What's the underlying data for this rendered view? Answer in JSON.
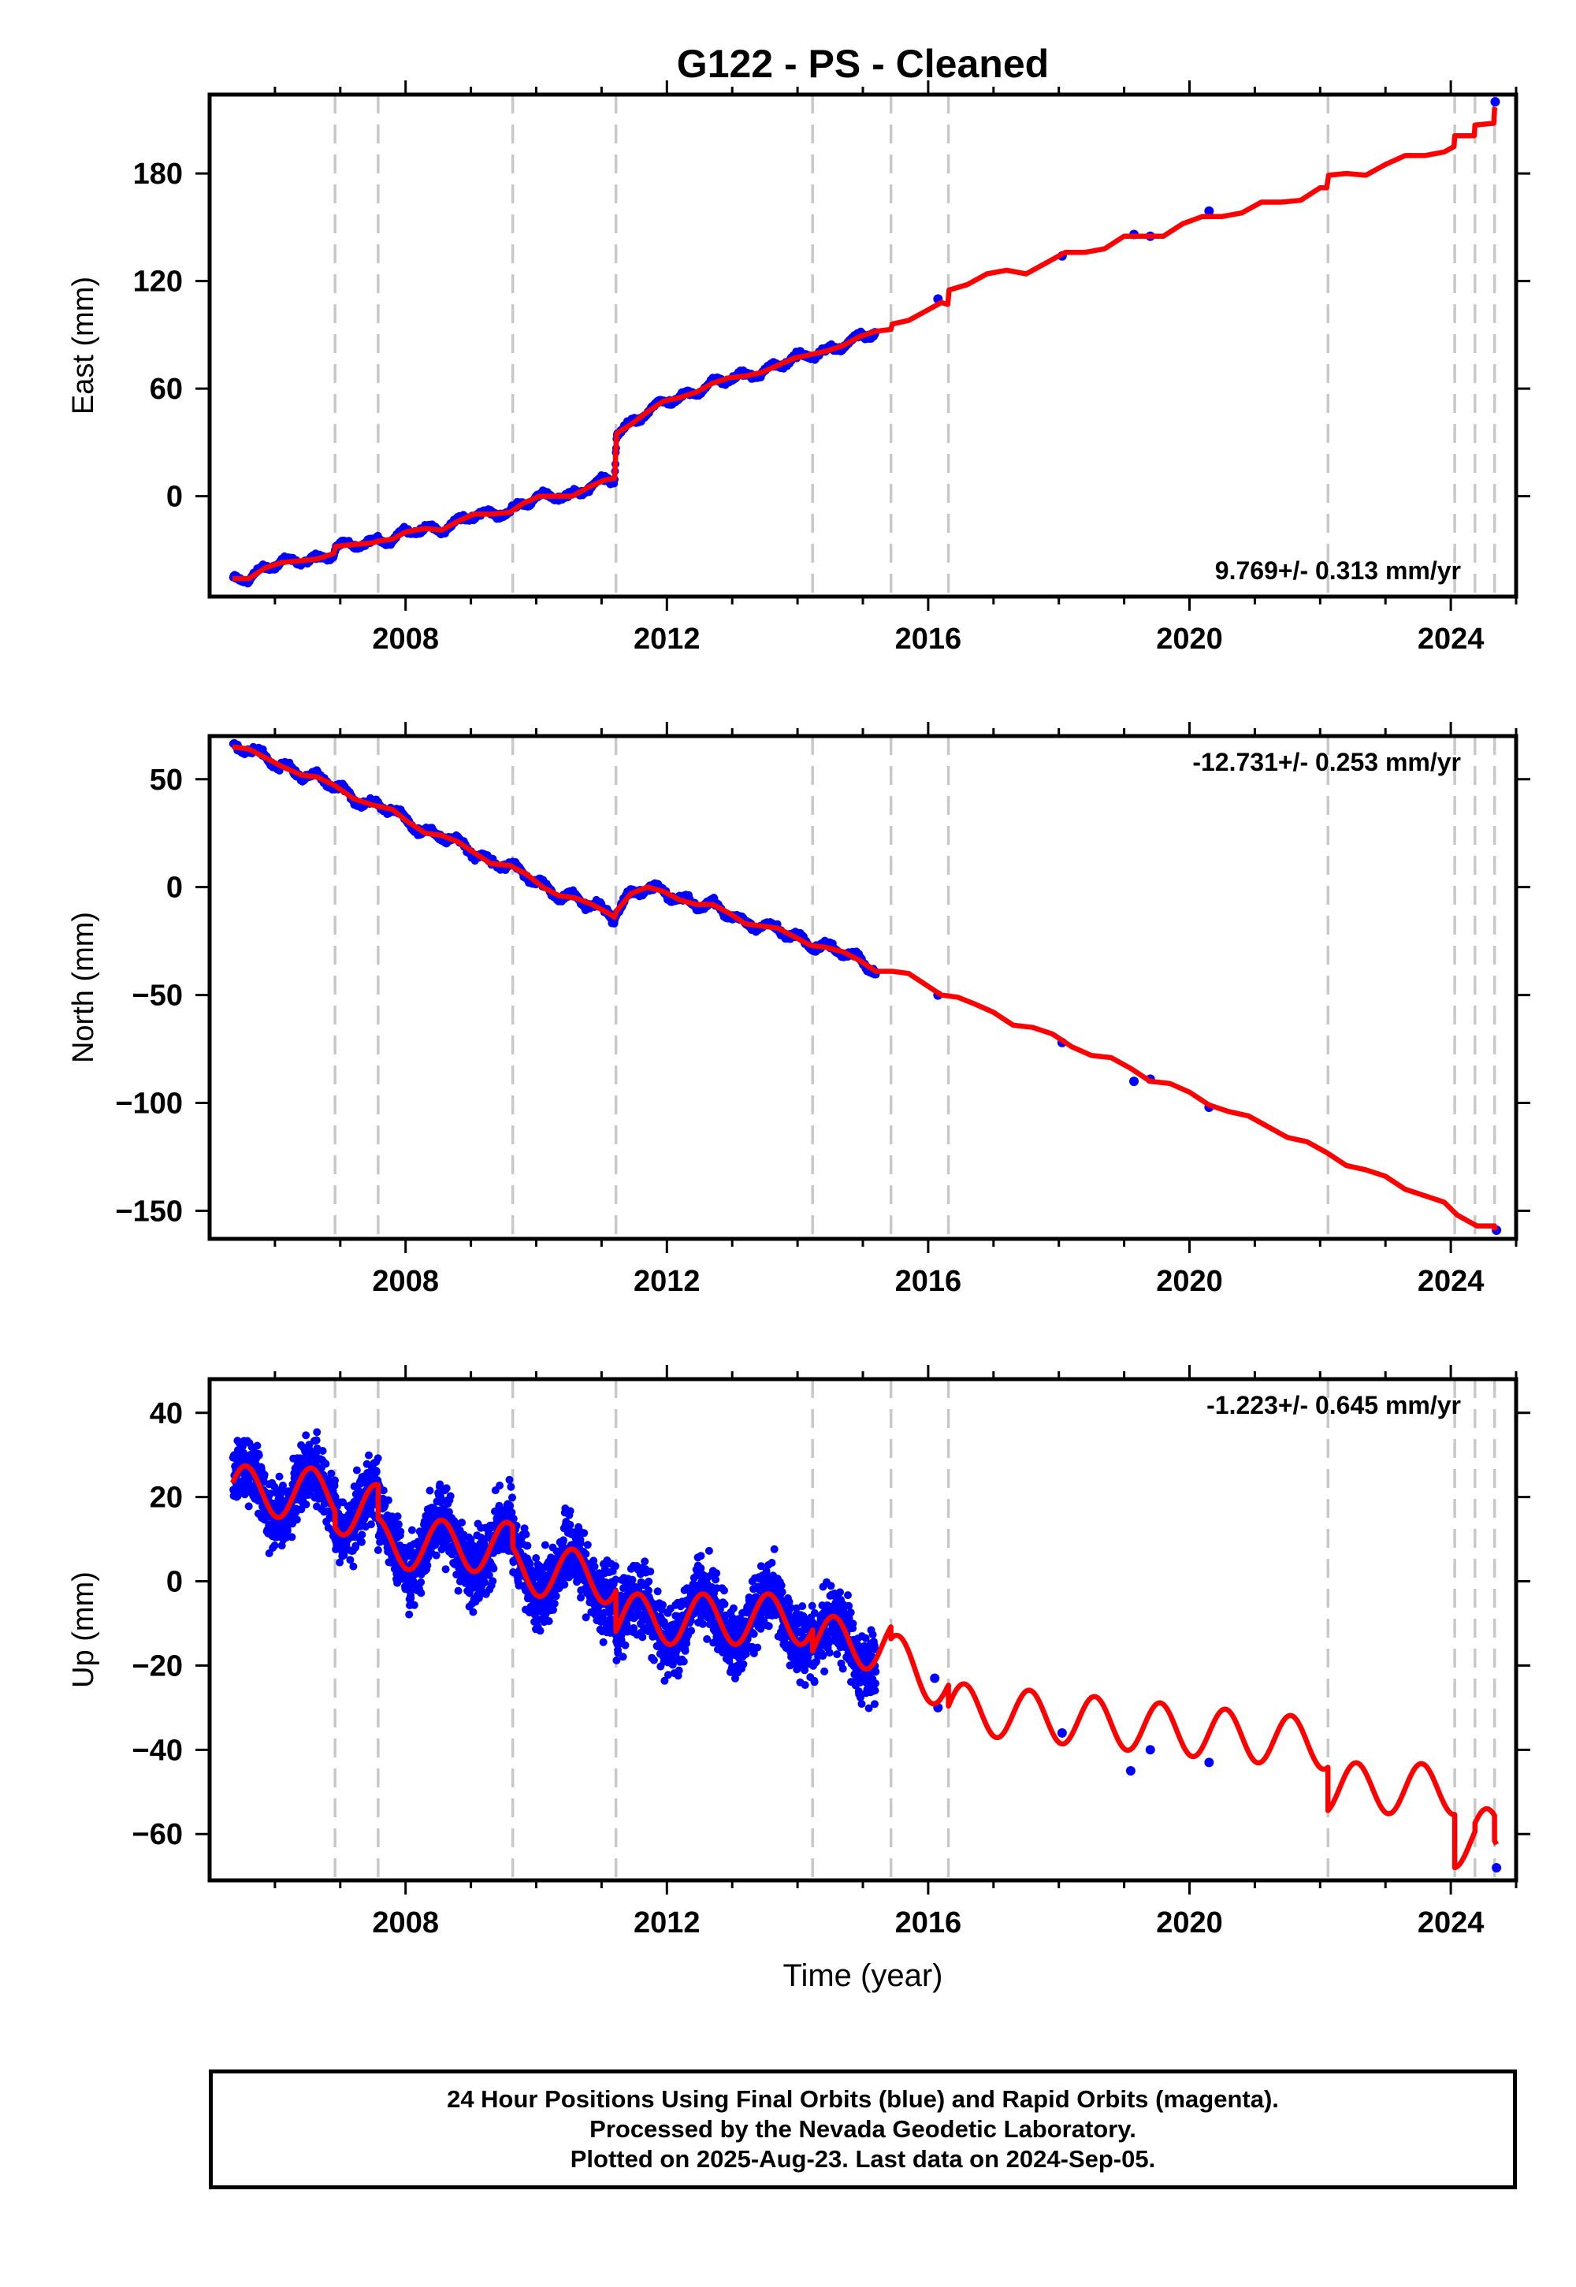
{
  "title": "G122  - PS - Cleaned",
  "chart_data": [
    {
      "type": "scatter",
      "panel": "east",
      "ylabel": "East (mm)",
      "xlim": [
        2005.0,
        2025.0
      ],
      "ylim": [
        -56,
        224
      ],
      "yticks": [
        0,
        60,
        120,
        180
      ],
      "xticks": [
        2008,
        2012,
        2016,
        2020,
        2024
      ],
      "rate_label": "9.769+/- 0.313 mm/yr",
      "rate_position": "bottom-right",
      "offsets": [
        2006.92,
        2007.58,
        2009.64,
        2011.22,
        2014.23,
        2015.43,
        2016.31,
        2022.12,
        2024.06,
        2024.37,
        2024.67
      ],
      "fit_line": {
        "color": "#ff0000",
        "points": [
          [
            2005.35,
            -46
          ],
          [
            2005.6,
            -46
          ],
          [
            2005.85,
            -40
          ],
          [
            2006.1,
            -37
          ],
          [
            2006.4,
            -36
          ],
          [
            2006.65,
            -35
          ],
          [
            2006.9,
            -32
          ],
          [
            2006.93,
            -28
          ],
          [
            2007.2,
            -27
          ],
          [
            2007.5,
            -26
          ],
          [
            2007.58,
            -25
          ],
          [
            2007.8,
            -24
          ],
          [
            2008.0,
            -20
          ],
          [
            2008.3,
            -18
          ],
          [
            2008.55,
            -19
          ],
          [
            2008.8,
            -14
          ],
          [
            2009.05,
            -10
          ],
          [
            2009.3,
            -10
          ],
          [
            2009.6,
            -9
          ],
          [
            2009.8,
            -4
          ],
          [
            2010.05,
            0
          ],
          [
            2010.3,
            0
          ],
          [
            2010.55,
            0
          ],
          [
            2010.8,
            5
          ],
          [
            2011.05,
            9
          ],
          [
            2011.2,
            10
          ],
          [
            2011.23,
            35
          ],
          [
            2011.45,
            40
          ],
          [
            2011.7,
            47
          ],
          [
            2011.95,
            53
          ],
          [
            2012.2,
            55
          ],
          [
            2012.45,
            58
          ],
          [
            2012.7,
            63
          ],
          [
            2012.95,
            66
          ],
          [
            2013.2,
            67
          ],
          [
            2013.45,
            69
          ],
          [
            2013.7,
            73
          ],
          [
            2013.95,
            77
          ],
          [
            2014.2,
            79
          ],
          [
            2014.45,
            81
          ],
          [
            2014.7,
            84
          ],
          [
            2014.95,
            89
          ],
          [
            2015.2,
            92
          ],
          [
            2015.43,
            93
          ],
          [
            2015.45,
            96
          ],
          [
            2015.7,
            98
          ],
          [
            2015.95,
            103
          ],
          [
            2016.2,
            108
          ],
          [
            2016.3,
            107
          ],
          [
            2016.32,
            115
          ],
          [
            2016.6,
            118
          ],
          [
            2016.9,
            124
          ],
          [
            2017.2,
            126
          ],
          [
            2017.5,
            124
          ],
          [
            2017.8,
            130
          ],
          [
            2018.1,
            136
          ],
          [
            2018.4,
            136
          ],
          [
            2018.7,
            138
          ],
          [
            2019.0,
            145
          ],
          [
            2019.3,
            145
          ],
          [
            2019.6,
            145
          ],
          [
            2019.9,
            152
          ],
          [
            2020.2,
            156
          ],
          [
            2020.5,
            156
          ],
          [
            2020.8,
            158
          ],
          [
            2021.1,
            164
          ],
          [
            2021.4,
            164
          ],
          [
            2021.7,
            165
          ],
          [
            2022.0,
            172
          ],
          [
            2022.1,
            172
          ],
          [
            2022.13,
            179
          ],
          [
            2022.4,
            180
          ],
          [
            2022.7,
            179
          ],
          [
            2023.0,
            185
          ],
          [
            2023.3,
            190
          ],
          [
            2023.6,
            190
          ],
          [
            2023.9,
            192
          ],
          [
            2024.05,
            195
          ],
          [
            2024.06,
            201
          ],
          [
            2024.36,
            201
          ],
          [
            2024.37,
            207
          ],
          [
            2024.66,
            208
          ],
          [
            2024.67,
            216
          ],
          [
            2024.68,
            217
          ]
        ]
      },
      "sparse_points": [
        [
          2016.15,
          110
        ],
        [
          2018.05,
          134
        ],
        [
          2019.15,
          146
        ],
        [
          2019.4,
          145
        ],
        [
          2020.3,
          159
        ],
        [
          2024.68,
          220
        ]
      ]
    },
    {
      "type": "scatter",
      "panel": "north",
      "ylabel": "North (mm)",
      "xlim": [
        2005.0,
        2025.0
      ],
      "ylim": [
        -163,
        70
      ],
      "yticks": [
        -150,
        -100,
        -50,
        0,
        50
      ],
      "xticks": [
        2008,
        2012,
        2016,
        2020,
        2024
      ],
      "rate_label": "-12.731+/- 0.253 mm/yr",
      "rate_position": "top-right",
      "offsets": [
        2006.92,
        2007.58,
        2009.64,
        2011.22,
        2014.23,
        2015.43,
        2016.31,
        2022.12,
        2024.06,
        2024.37,
        2024.67
      ],
      "fit_line": {
        "color": "#ff0000",
        "points": [
          [
            2005.35,
            65
          ],
          [
            2005.6,
            64
          ],
          [
            2005.85,
            60
          ],
          [
            2006.1,
            56
          ],
          [
            2006.4,
            52
          ],
          [
            2006.65,
            51
          ],
          [
            2006.92,
            47
          ],
          [
            2007.2,
            41
          ],
          [
            2007.5,
            38
          ],
          [
            2007.8,
            36
          ],
          [
            2008.0,
            31
          ],
          [
            2008.3,
            25
          ],
          [
            2008.55,
            24
          ],
          [
            2008.8,
            21
          ],
          [
            2009.05,
            16
          ],
          [
            2009.3,
            11
          ],
          [
            2009.6,
            10
          ],
          [
            2009.85,
            6
          ],
          [
            2010.1,
            0
          ],
          [
            2010.35,
            -4
          ],
          [
            2010.6,
            -5
          ],
          [
            2010.85,
            -8
          ],
          [
            2011.1,
            -12
          ],
          [
            2011.2,
            -14
          ],
          [
            2011.23,
            -11
          ],
          [
            2011.45,
            -3
          ],
          [
            2011.7,
            0
          ],
          [
            2011.95,
            -2
          ],
          [
            2012.2,
            -6
          ],
          [
            2012.45,
            -8
          ],
          [
            2012.7,
            -8
          ],
          [
            2012.95,
            -12
          ],
          [
            2013.2,
            -17
          ],
          [
            2013.45,
            -18
          ],
          [
            2013.7,
            -19
          ],
          [
            2013.95,
            -23
          ],
          [
            2014.2,
            -27
          ],
          [
            2014.45,
            -28
          ],
          [
            2014.7,
            -30
          ],
          [
            2014.95,
            -34
          ],
          [
            2015.2,
            -39
          ],
          [
            2015.45,
            -39
          ],
          [
            2015.7,
            -40
          ],
          [
            2015.95,
            -45
          ],
          [
            2016.2,
            -50
          ],
          [
            2016.45,
            -51
          ],
          [
            2016.7,
            -54
          ],
          [
            2017.0,
            -58
          ],
          [
            2017.3,
            -64
          ],
          [
            2017.6,
            -65
          ],
          [
            2017.9,
            -68
          ],
          [
            2018.2,
            -74
          ],
          [
            2018.5,
            -78
          ],
          [
            2018.8,
            -79
          ],
          [
            2019.1,
            -84
          ],
          [
            2019.4,
            -90
          ],
          [
            2019.7,
            -91
          ],
          [
            2020.0,
            -95
          ],
          [
            2020.3,
            -101
          ],
          [
            2020.6,
            -104
          ],
          [
            2020.9,
            -106
          ],
          [
            2021.2,
            -111
          ],
          [
            2021.5,
            -116
          ],
          [
            2021.8,
            -118
          ],
          [
            2022.1,
            -123
          ],
          [
            2022.4,
            -129
          ],
          [
            2022.7,
            -131
          ],
          [
            2023.0,
            -134
          ],
          [
            2023.3,
            -140
          ],
          [
            2023.6,
            -143
          ],
          [
            2023.9,
            -146
          ],
          [
            2024.1,
            -152
          ],
          [
            2024.4,
            -157
          ],
          [
            2024.67,
            -157
          ],
          [
            2024.68,
            -159
          ]
        ]
      },
      "sparse_points": [
        [
          2016.15,
          -50
        ],
        [
          2018.05,
          -72
        ],
        [
          2019.15,
          -90
        ],
        [
          2019.4,
          -89
        ],
        [
          2020.3,
          -102
        ],
        [
          2024.7,
          -159
        ]
      ]
    },
    {
      "type": "scatter",
      "panel": "up",
      "ylabel": "Up (mm)",
      "xlabel": "Time (year)",
      "xlim": [
        2005.0,
        2025.0
      ],
      "ylim": [
        -71,
        48
      ],
      "yticks": [
        -60,
        -40,
        -20,
        0,
        20,
        40
      ],
      "xticks": [
        2008,
        2012,
        2016,
        2020,
        2024
      ],
      "rate_label": "-1.223+/- 0.645 mm/yr",
      "rate_position": "top-right",
      "offsets": [
        2006.92,
        2007.58,
        2009.64,
        2011.22,
        2014.23,
        2015.43,
        2016.31,
        2022.12,
        2024.06,
        2024.37,
        2024.67
      ],
      "fit_model": {
        "color": "#ff0000",
        "seasonal_amplitude_mm": 6,
        "segments": [
          [
            2005.35,
            2006.92,
            21.5,
            -0.5
          ],
          [
            2006.92,
            2007.58,
            17,
            0
          ],
          [
            2007.58,
            2009.64,
            9,
            -0.5
          ],
          [
            2009.64,
            2011.22,
            3,
            -1.5
          ],
          [
            2011.22,
            2014.23,
            -9,
            0
          ],
          [
            2014.23,
            2015.43,
            -14,
            -1
          ],
          [
            2015.43,
            2016.31,
            -18,
            -8
          ],
          [
            2016.31,
            2022.12,
            -30,
            -1.5
          ],
          [
            2022.12,
            2024.06,
            -49,
            -0.2
          ],
          [
            2024.06,
            2024.37,
            -62,
            0
          ],
          [
            2024.37,
            2024.67,
            -60,
            0
          ],
          [
            2024.67,
            2024.7,
            -66,
            0
          ]
        ]
      },
      "scatter_spread_mm": 9,
      "sparse_points": [
        [
          2016.1,
          -23
        ],
        [
          2016.15,
          -30
        ],
        [
          2018.05,
          -36
        ],
        [
          2019.1,
          -45
        ],
        [
          2019.4,
          -40
        ],
        [
          2020.3,
          -43
        ],
        [
          2024.7,
          -68
        ]
      ]
    }
  ],
  "footer": {
    "line1": "24 Hour Positions Using Final Orbits (blue) and Rapid Orbits (magenta).",
    "line2": "Processed by the Nevada Geodetic Laboratory.",
    "line3": "Plotted on 2025-Aug-23. Last data on 2024-Sep-05."
  },
  "colors": {
    "data_points": "#0000ff",
    "fit_line": "#ff0000",
    "offset_lines": "#c8c8c8",
    "frame": "#000000"
  }
}
